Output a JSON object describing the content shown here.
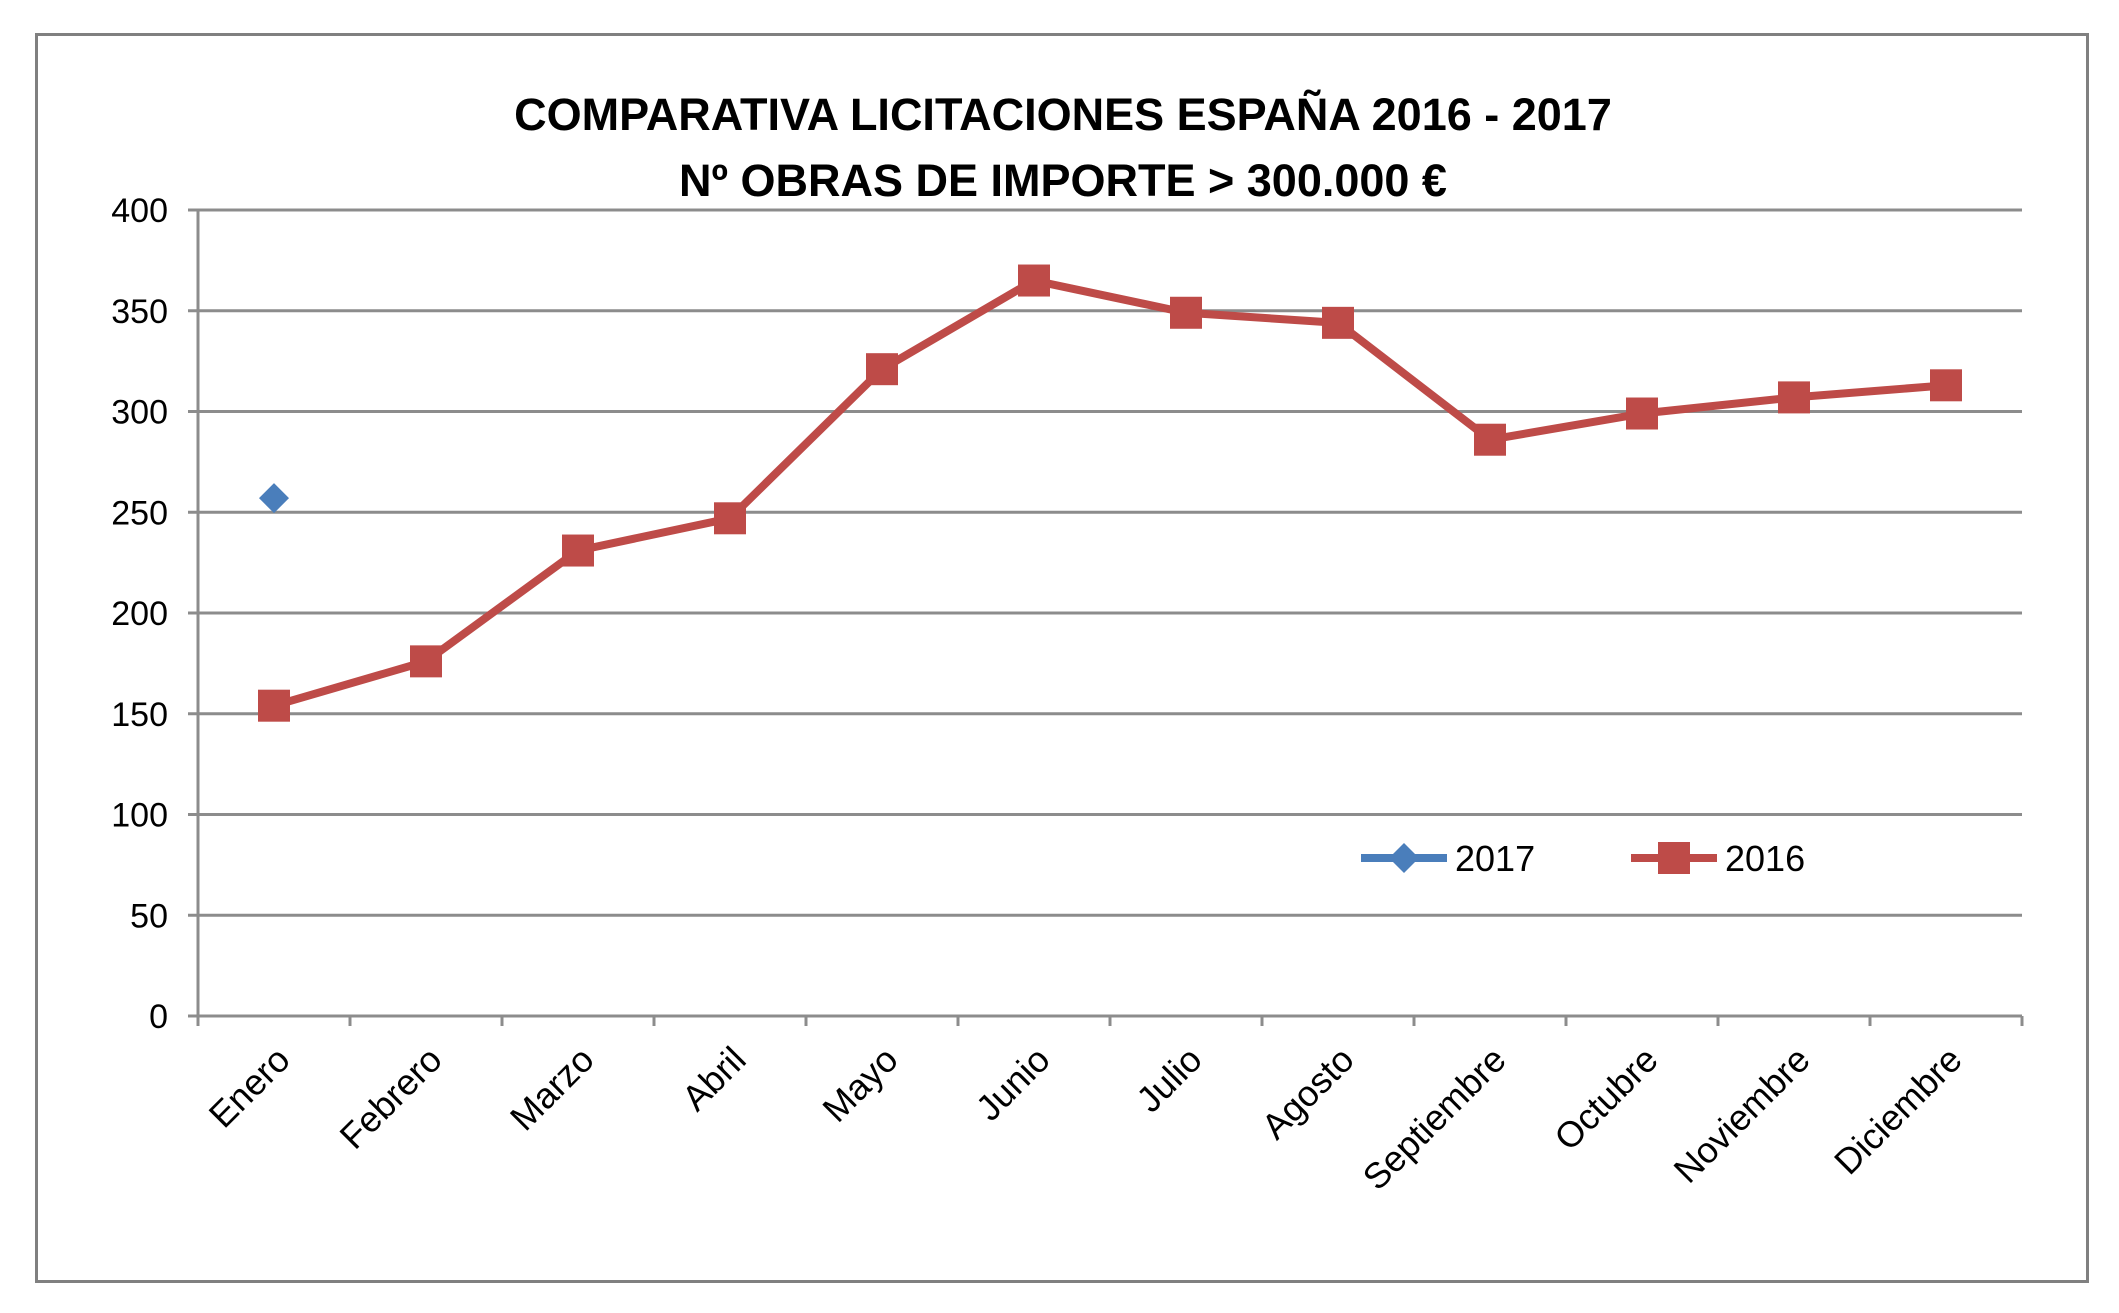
{
  "chart_data": {
    "type": "line",
    "title": "COMPARATIVA LICITACIONES ESPAÑA 2016 - 2017",
    "subtitle": "Nº OBRAS DE IMPORTE > 300.000 €",
    "xlabel": "",
    "ylabel": "",
    "ylim": [
      0,
      400
    ],
    "yticks": [
      "0",
      "50",
      "100",
      "150",
      "200",
      "250",
      "300",
      "350",
      "400"
    ],
    "grid": true,
    "legend_position": "bottom-right",
    "categories": [
      "Enero",
      "Febrero",
      "Marzo",
      "Abril",
      "Mayo",
      "Junio",
      "Julio",
      "Agosto",
      "Septiembre",
      "Octubre",
      "Noviembre",
      "Diciembre"
    ],
    "series": [
      {
        "name": "2017",
        "color": "#4A7EBB",
        "marker": "diamond",
        "values": [
          257,
          null,
          null,
          null,
          null,
          null,
          null,
          null,
          null,
          null,
          null,
          null
        ]
      },
      {
        "name": "2016",
        "color": "#BE4B48",
        "marker": "square",
        "values": [
          154,
          176,
          231,
          247,
          321,
          365,
          349,
          344,
          286,
          299,
          307,
          313
        ]
      }
    ]
  }
}
